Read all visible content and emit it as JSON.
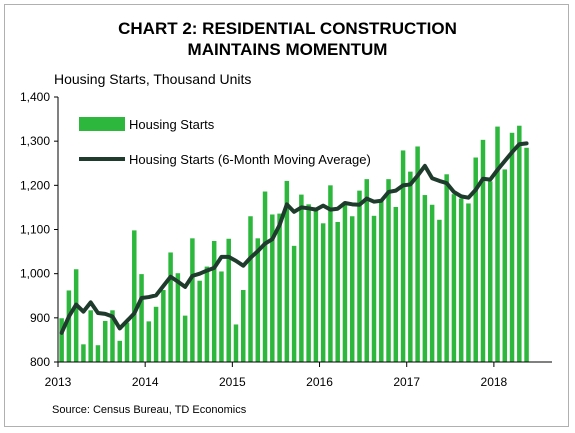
{
  "title_lines": [
    "CHART 2: RESIDENTIAL CONSTRUCTION",
    "MAINTAINS MOMENTUM"
  ],
  "y_unit_label": "Housing Starts, Thousand Units",
  "source": "Source: Census Bureau, TD Economics",
  "colors": {
    "bar": "#2db83d",
    "line": "#1f3b2d"
  },
  "chart_data": {
    "type": "bar",
    "title": "CHART 2: RESIDENTIAL CONSTRUCTION MAINTAINS MOMENTUM",
    "ylabel": "Housing Starts, Thousand Units",
    "ylim": [
      800,
      1400
    ],
    "yticks": [
      800,
      900,
      1000,
      1100,
      1200,
      1300,
      1400
    ],
    "ytick_labels": [
      "800",
      "900",
      "1,000",
      "1,100",
      "1,200",
      "1,300",
      "1,400"
    ],
    "xtick_labels": [
      "2013",
      "2014",
      "2015",
      "2016",
      "2017",
      "2018"
    ],
    "x_start": "2013-01",
    "legend": "top-left",
    "grid": false,
    "series": [
      {
        "name": "Housing Starts",
        "kind": "bar",
        "values": [
          899,
          962,
          1010,
          840,
          917,
          838,
          893,
          917,
          848,
          889,
          1098,
          999,
          892,
          925,
          963,
          1048,
          1001,
          905,
          1080,
          984,
          1016,
          1074,
          1005,
          1079,
          885,
          963,
          1130,
          1080,
          1186,
          1134,
          1136,
          1210,
          1063,
          1179,
          1157,
          1150,
          1114,
          1200,
          1117,
          1160,
          1130,
          1188,
          1214,
          1131,
          1168,
          1214,
          1151,
          1279,
          1231,
          1288,
          1178,
          1156,
          1122,
          1225,
          1180,
          1170,
          1159,
          1263,
          1303,
          1209,
          1333,
          1236,
          1319,
          1335,
          1285
        ]
      },
      {
        "name": "Housing Starts (6-Month Moving Average)",
        "kind": "line",
        "values": [
          866,
          903,
          930,
          914,
          935,
          911,
          909,
          903,
          876,
          893,
          910,
          945,
          947,
          951,
          972,
          993,
          982,
          970,
          995,
          1000,
          1007,
          1013,
          1038,
          1038,
          1029,
          1018,
          1036,
          1051,
          1068,
          1078,
          1110,
          1157,
          1140,
          1150,
          1148,
          1145,
          1154,
          1145,
          1147,
          1160,
          1157,
          1156,
          1170,
          1163,
          1165,
          1185,
          1188,
          1200,
          1202,
          1222,
          1244,
          1216,
          1210,
          1205,
          1185,
          1175,
          1172,
          1190,
          1215,
          1213,
          1235,
          1255,
          1275,
          1293,
          1295
        ]
      }
    ]
  }
}
